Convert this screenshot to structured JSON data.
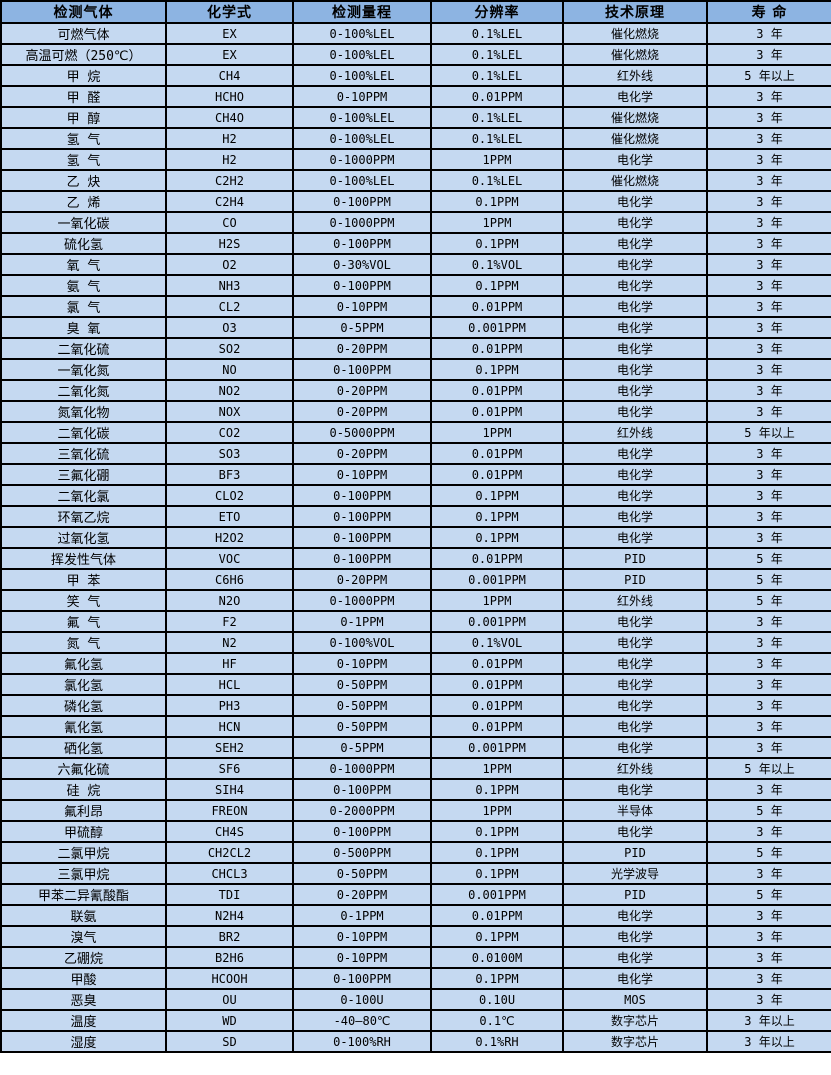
{
  "colors": {
    "header_bg": "#8db4e2",
    "row_bg": "#c5d9f1",
    "border": "#000000",
    "text": "#000000"
  },
  "table": {
    "headers": [
      "检测气体",
      "化学式",
      "检测量程",
      "分辨率",
      "技术原理",
      "寿 命"
    ],
    "column_keys": [
      "gas",
      "formula",
      "range",
      "resolution",
      "principle",
      "lifespan"
    ],
    "rows": [
      [
        "可燃气体",
        "EX",
        "0-100%LEL",
        "0.1%LEL",
        "催化燃烧",
        "3 年"
      ],
      [
        "高温可燃（250℃）",
        "EX",
        "0-100%LEL",
        "0.1%LEL",
        "催化燃烧",
        "3 年"
      ],
      [
        "甲 烷",
        "CH4",
        "0-100%LEL",
        "0.1%LEL",
        "红外线",
        "5 年以上"
      ],
      [
        "甲 醛",
        "HCHO",
        "0-10PPM",
        "0.01PPM",
        "电化学",
        "3 年"
      ],
      [
        "甲 醇",
        "CH4O",
        "0-100%LEL",
        "0.1%LEL",
        "催化燃烧",
        "3 年"
      ],
      [
        "氢 气",
        "H2",
        "0-100%LEL",
        "0.1%LEL",
        "催化燃烧",
        "3 年"
      ],
      [
        "氢 气",
        "H2",
        "0-1000PPM",
        "1PPM",
        "电化学",
        "3 年"
      ],
      [
        "乙 炔",
        "C2H2",
        "0-100%LEL",
        "0.1%LEL",
        "催化燃烧",
        "3 年"
      ],
      [
        "乙 烯",
        "C2H4",
        "0-100PPM",
        "0.1PPM",
        "电化学",
        "3 年"
      ],
      [
        "一氧化碳",
        "CO",
        "0-1000PPM",
        "1PPM",
        "电化学",
        "3 年"
      ],
      [
        "硫化氢",
        "H2S",
        "0-100PPM",
        "0.1PPM",
        "电化学",
        "3 年"
      ],
      [
        "氧 气",
        "O2",
        "0-30%VOL",
        "0.1%VOL",
        "电化学",
        "3 年"
      ],
      [
        "氨 气",
        "NH3",
        "0-100PPM",
        "0.1PPM",
        "电化学",
        "3 年"
      ],
      [
        "氯 气",
        "CL2",
        "0-10PPM",
        "0.01PPM",
        "电化学",
        "3 年"
      ],
      [
        "臭 氧",
        "O3",
        "0-5PPM",
        "0.001PPM",
        "电化学",
        "3 年"
      ],
      [
        "二氧化硫",
        "SO2",
        "0-20PPM",
        "0.01PPM",
        "电化学",
        "3 年"
      ],
      [
        "一氧化氮",
        "NO",
        "0-100PPM",
        "0.1PPM",
        "电化学",
        "3 年"
      ],
      [
        "二氧化氮",
        "NO2",
        "0-20PPM",
        "0.01PPM",
        "电化学",
        "3 年"
      ],
      [
        "氮氧化物",
        "NOX",
        "0-20PPM",
        "0.01PPM",
        "电化学",
        "3 年"
      ],
      [
        "二氧化碳",
        "CO2",
        "0-5000PPM",
        "1PPM",
        "红外线",
        "5 年以上"
      ],
      [
        "三氧化硫",
        "SO3",
        "0-20PPM",
        "0.01PPM",
        "电化学",
        "3 年"
      ],
      [
        "三氟化硼",
        "BF3",
        "0-10PPM",
        "0.01PPM",
        "电化学",
        "3 年"
      ],
      [
        "二氧化氯",
        "CLO2",
        "0-100PPM",
        "0.1PPM",
        "电化学",
        "3 年"
      ],
      [
        "环氧乙烷",
        "ETO",
        "0-100PPM",
        "0.1PPM",
        "电化学",
        "3 年"
      ],
      [
        "过氧化氢",
        "H2O2",
        "0-100PPM",
        "0.1PPM",
        "电化学",
        "3 年"
      ],
      [
        "挥发性气体",
        "VOC",
        "0-100PPM",
        "0.01PPM",
        "PID",
        "5 年"
      ],
      [
        "甲 苯",
        "C6H6",
        "0-20PPM",
        "0.001PPM",
        "PID",
        "5 年"
      ],
      [
        "笑 气",
        "N2O",
        "0-1000PPM",
        "1PPM",
        "红外线",
        "5 年"
      ],
      [
        "氟 气",
        "F2",
        "0-1PPM",
        "0.001PPM",
        "电化学",
        "3 年"
      ],
      [
        "氮 气",
        "N2",
        "0-100%VOL",
        "0.1%VOL",
        "电化学",
        "3 年"
      ],
      [
        "氟化氢",
        "HF",
        "0-10PPM",
        "0.01PPM",
        "电化学",
        "3 年"
      ],
      [
        "氯化氢",
        "HCL",
        "0-50PPM",
        "0.01PPM",
        "电化学",
        "3 年"
      ],
      [
        "磷化氢",
        "PH3",
        "0-50PPM",
        "0.01PPM",
        "电化学",
        "3 年"
      ],
      [
        "氰化氢",
        "HCN",
        "0-50PPM",
        "0.01PPM",
        "电化学",
        "3 年"
      ],
      [
        "硒化氢",
        "SEH2",
        "0-5PPM",
        "0.001PPM",
        "电化学",
        "3 年"
      ],
      [
        "六氟化硫",
        "SF6",
        "0-1000PPM",
        "1PPM",
        "红外线",
        "5 年以上"
      ],
      [
        "硅 烷",
        "SIH4",
        "0-100PPM",
        "0.1PPM",
        "电化学",
        "3 年"
      ],
      [
        "氟利昂",
        "FREON",
        "0-2000PPM",
        "1PPM",
        "半导体",
        "5 年"
      ],
      [
        "甲硫醇",
        "CH4S",
        "0-100PPM",
        "0.1PPM",
        "电化学",
        "3 年"
      ],
      [
        "二氯甲烷",
        "CH2CL2",
        "0-500PPM",
        "0.1PPM",
        "PID",
        "5 年"
      ],
      [
        "三氯甲烷",
        "CHCL3",
        "0-50PPM",
        "0.1PPM",
        "光学波导",
        "3 年"
      ],
      [
        "甲苯二异氰酸酯",
        "TDI",
        "0-20PPM",
        "0.001PPM",
        "PID",
        "5 年"
      ],
      [
        "联氨",
        "N2H4",
        "0-1PPM",
        "0.01PPM",
        "电化学",
        "3 年"
      ],
      [
        "溴气",
        "BR2",
        "0-10PPM",
        "0.1PPM",
        "电化学",
        "3 年"
      ],
      [
        "乙硼烷",
        "B2H6",
        "0-10PPM",
        "0.0100M",
        "电化学",
        "3 年"
      ],
      [
        "甲酸",
        "HCOOH",
        "0-100PPM",
        "0.1PPM",
        "电化学",
        "3 年"
      ],
      [
        "恶臭",
        "OU",
        "0-100U",
        "0.10U",
        "MOS",
        "3 年"
      ],
      [
        "温度",
        "WD",
        "-40—80℃",
        "0.1℃",
        "数字芯片",
        "3 年以上"
      ],
      [
        "湿度",
        "SD",
        "0-100%RH",
        "0.1%RH",
        "数字芯片",
        "3 年以上"
      ]
    ]
  }
}
